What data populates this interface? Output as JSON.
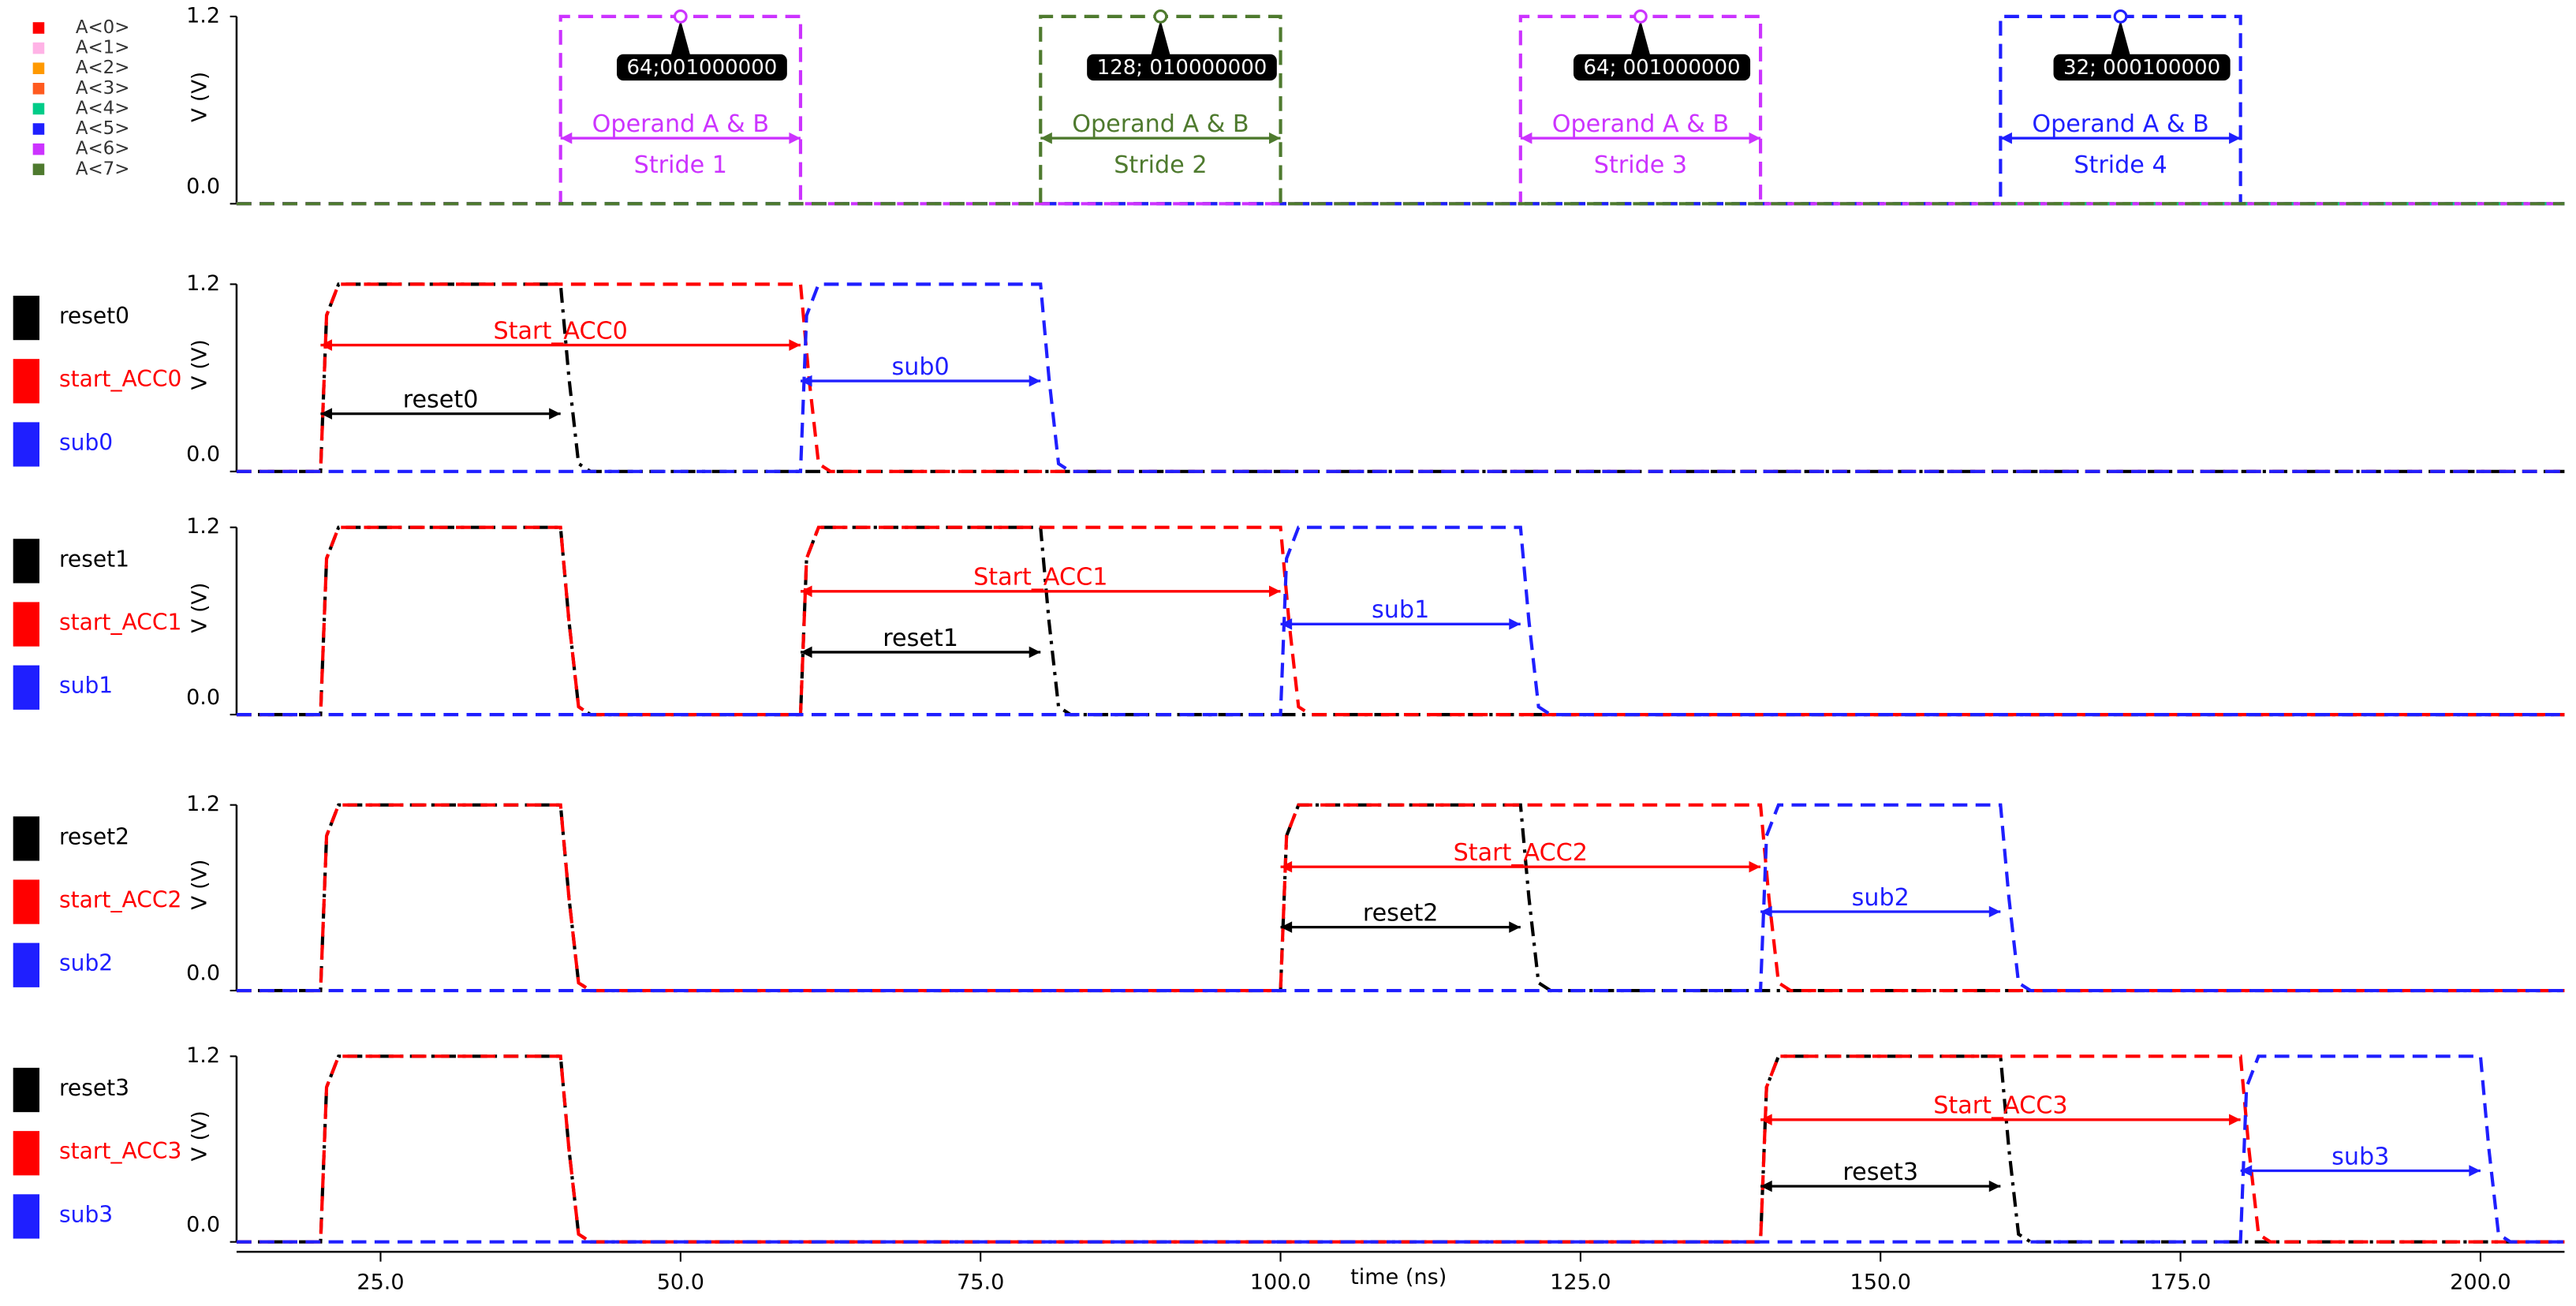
{
  "chart_data": [
    {
      "type": "line",
      "ylabel": "V (V)",
      "legend": "list",
      "xlim": [
        13,
        207
      ],
      "ylim": [
        0,
        1.2
      ],
      "yticks": [
        {
          "value": 0,
          "label": "0.0"
        },
        {
          "value": 1.2,
          "label": "1.2"
        }
      ],
      "series": [
        {
          "name": "A<0>",
          "color": "#ff0000",
          "dash": "dashed",
          "x": [
            13,
            207
          ],
          "values": [
            0,
            0
          ]
        },
        {
          "name": "A<1>",
          "color": "#ffb3e6",
          "dash": "dashed",
          "x": [
            13,
            207
          ],
          "values": [
            0,
            0
          ]
        },
        {
          "name": "A<2>",
          "color": "#ff9900",
          "dash": "dashed",
          "x": [
            13,
            207
          ],
          "values": [
            0,
            0
          ]
        },
        {
          "name": "A<3>",
          "color": "#ff5a1f",
          "dash": "dashed",
          "x": [
            13,
            207
          ],
          "values": [
            0,
            0
          ]
        },
        {
          "name": "A<4>",
          "color": "#00cc88",
          "dash": "dashed",
          "x": [
            13,
            207
          ],
          "values": [
            0,
            0
          ]
        },
        {
          "name": "A<5>",
          "color": "#1f1fff",
          "dash": "dashed",
          "x": [
            13,
            160,
            160,
            180,
            180,
            207
          ],
          "values": [
            0,
            0,
            1.2,
            1.2,
            0,
            0
          ]
        },
        {
          "name": "A<6>",
          "color": "#cc33ff",
          "dash": "dashed",
          "x": [
            13,
            40,
            40,
            60,
            60,
            120,
            120,
            140,
            140,
            207
          ],
          "values": [
            0,
            0,
            1.2,
            1.2,
            0,
            0,
            1.2,
            1.2,
            0,
            0
          ]
        },
        {
          "name": "A<7>",
          "color": "#4e7a2e",
          "dash": "dashed",
          "x": [
            13,
            80,
            80,
            100,
            100,
            207
          ],
          "values": [
            0,
            0,
            1.2,
            1.2,
            0,
            0
          ]
        }
      ],
      "annotations": [
        {
          "label": "Operand A & B",
          "sublabel": "Stride 1",
          "x": [
            40,
            60
          ],
          "y": 0.42,
          "color": "#cc33ff"
        },
        {
          "label": "Operand A & B",
          "sublabel": "Stride 2",
          "x": [
            80,
            100
          ],
          "y": 0.42,
          "color": "#4e7a2e"
        },
        {
          "label": "Operand A & B",
          "sublabel": "Stride 3",
          "x": [
            120,
            140
          ],
          "y": 0.42,
          "color": "#cc33ff"
        },
        {
          "label": "Operand A & B",
          "sublabel": "Stride 4",
          "x": [
            160,
            180
          ],
          "y": 0.42,
          "color": "#1f1fff"
        }
      ],
      "callouts": [
        {
          "text": "64;001000000",
          "x": 50,
          "y": 1.2,
          "color": "#cc33ff"
        },
        {
          "text": "128; 010000000",
          "x": 90,
          "y": 1.2,
          "color": "#4e7a2e"
        },
        {
          "text": "64; 001000000",
          "x": 130,
          "y": 1.2,
          "color": "#cc33ff"
        },
        {
          "text": "32; 000100000",
          "x": 170,
          "y": 1.2,
          "color": "#1f1fff"
        }
      ]
    },
    {
      "type": "line",
      "ylabel": "V (V)",
      "legend": "swatch",
      "xlim": [
        13,
        207
      ],
      "ylim": [
        0,
        1.2
      ],
      "yticks": [
        {
          "value": 0,
          "label": "0.0"
        },
        {
          "value": 1.2,
          "label": "1.2"
        }
      ],
      "series": [
        {
          "name": "reset0",
          "color": "#000000",
          "dash": "dashdot",
          "x": [
            13,
            20,
            20.5,
            21.5,
            40,
            40.7,
            41.5,
            42.5,
            207
          ],
          "values": [
            0,
            0,
            1,
            1.2,
            1.2,
            0.6,
            0.05,
            0,
            0
          ]
        },
        {
          "name": "start_ACC0",
          "color": "#ff0000",
          "dash": "dashed",
          "x": [
            13,
            20,
            20.5,
            21.5,
            60,
            60.7,
            61.5,
            62.5,
            207
          ],
          "values": [
            0,
            0,
            1,
            1.2,
            1.2,
            0.6,
            0.05,
            0,
            0
          ]
        },
        {
          "name": "sub0",
          "color": "#1f1fff",
          "dash": "dashed",
          "x": [
            13,
            60,
            60.5,
            61.5,
            80,
            80.7,
            81.5,
            82.5,
            207
          ],
          "values": [
            0,
            0,
            1,
            1.2,
            1.2,
            0.6,
            0.05,
            0,
            0
          ]
        }
      ],
      "annotations": [
        {
          "label": "Start_ACC0",
          "x": [
            20,
            60
          ],
          "y": 0.81,
          "color": "#ff0000"
        },
        {
          "label": "reset0",
          "x": [
            20,
            40
          ],
          "y": 0.37,
          "color": "#000000"
        },
        {
          "label": "sub0",
          "x": [
            60,
            80
          ],
          "y": 0.58,
          "color": "#1f1fff"
        }
      ]
    },
    {
      "type": "line",
      "ylabel": "V (V)",
      "legend": "swatch",
      "xlim": [
        13,
        207
      ],
      "ylim": [
        0,
        1.2
      ],
      "yticks": [
        {
          "value": 0,
          "label": "0.0"
        },
        {
          "value": 1.2,
          "label": "1.2"
        }
      ],
      "series": [
        {
          "name": "reset1",
          "color": "#000000",
          "dash": "dashdot",
          "x": [
            13,
            20,
            20.5,
            21.5,
            40,
            40.7,
            41.5,
            42.5,
            60,
            60.5,
            61.5,
            80,
            80.7,
            81.5,
            82.5,
            207
          ],
          "values": [
            0,
            0,
            1,
            1.2,
            1.2,
            0.6,
            0.05,
            0,
            0,
            1,
            1.2,
            1.2,
            0.6,
            0.05,
            0,
            0
          ]
        },
        {
          "name": "start_ACC1",
          "color": "#ff0000",
          "dash": "dashed",
          "x": [
            13,
            20,
            20.5,
            21.5,
            40,
            40.7,
            41.5,
            42.5,
            60,
            60.5,
            61.5,
            100,
            100.7,
            101.5,
            102.5,
            207
          ],
          "values": [
            0,
            0,
            1,
            1.2,
            1.2,
            0.6,
            0.05,
            0,
            0,
            1,
            1.2,
            1.2,
            0.6,
            0.05,
            0,
            0
          ]
        },
        {
          "name": "sub1",
          "color": "#1f1fff",
          "dash": "dashed",
          "x": [
            13,
            100,
            100.5,
            101.5,
            120,
            120.7,
            121.5,
            122.5,
            207
          ],
          "values": [
            0,
            0,
            1,
            1.2,
            1.2,
            0.6,
            0.05,
            0,
            0
          ]
        }
      ],
      "annotations": [
        {
          "label": "Start_ACC1",
          "x": [
            60,
            100
          ],
          "y": 0.79,
          "color": "#ff0000"
        },
        {
          "label": "reset1",
          "x": [
            60,
            80
          ],
          "y": 0.4,
          "color": "#000000"
        },
        {
          "label": "sub1",
          "x": [
            100,
            120
          ],
          "y": 0.58,
          "color": "#1f1fff"
        }
      ]
    },
    {
      "type": "line",
      "ylabel": "V (V)",
      "legend": "swatch",
      "xlim": [
        13,
        207
      ],
      "ylim": [
        0,
        1.2
      ],
      "yticks": [
        {
          "value": 0,
          "label": "0.0"
        },
        {
          "value": 1.2,
          "label": "1.2"
        }
      ],
      "series": [
        {
          "name": "reset2",
          "color": "#000000",
          "dash": "dashdot",
          "x": [
            13,
            20,
            20.5,
            21.5,
            40,
            40.7,
            41.5,
            42.5,
            100,
            100.5,
            101.5,
            120,
            120.7,
            121.5,
            122.5,
            207
          ],
          "values": [
            0,
            0,
            1,
            1.2,
            1.2,
            0.6,
            0.05,
            0,
            0,
            1,
            1.2,
            1.2,
            0.6,
            0.05,
            0,
            0
          ]
        },
        {
          "name": "start_ACC2",
          "color": "#ff0000",
          "dash": "dashed",
          "x": [
            13,
            20,
            20.5,
            21.5,
            40,
            40.7,
            41.5,
            42.5,
            100,
            100.5,
            101.5,
            140,
            140.7,
            141.5,
            142.5,
            207
          ],
          "values": [
            0,
            0,
            1,
            1.2,
            1.2,
            0.6,
            0.05,
            0,
            0,
            1,
            1.2,
            1.2,
            0.6,
            0.05,
            0,
            0
          ]
        },
        {
          "name": "sub2",
          "color": "#1f1fff",
          "dash": "dashed",
          "x": [
            13,
            140,
            140.5,
            141.5,
            160,
            160.7,
            161.5,
            162.5,
            207
          ],
          "values": [
            0,
            0,
            1,
            1.2,
            1.2,
            0.6,
            0.05,
            0,
            0
          ]
        }
      ],
      "annotations": [
        {
          "label": "Start_ACC2",
          "x": [
            100,
            140
          ],
          "y": 0.8,
          "color": "#ff0000"
        },
        {
          "label": "reset2",
          "x": [
            100,
            120
          ],
          "y": 0.41,
          "color": "#000000"
        },
        {
          "label": "sub2",
          "x": [
            140,
            160
          ],
          "y": 0.51,
          "color": "#1f1fff"
        }
      ]
    },
    {
      "type": "line",
      "ylabel": "V (V)",
      "legend": "swatch",
      "xlabel": "time (ns)",
      "xlim": [
        13,
        207
      ],
      "ylim": [
        0,
        1.2
      ],
      "yticks": [
        {
          "value": 0,
          "label": "0.0"
        },
        {
          "value": 1.2,
          "label": "1.2"
        }
      ],
      "xticks": [
        {
          "value": 25,
          "label": "25.0"
        },
        {
          "value": 50,
          "label": "50.0"
        },
        {
          "value": 75,
          "label": "75.0"
        },
        {
          "value": 100,
          "label": "100.0"
        },
        {
          "value": 125,
          "label": "125.0"
        },
        {
          "value": 150,
          "label": "150.0"
        },
        {
          "value": 175,
          "label": "175.0"
        },
        {
          "value": 200,
          "label": "200.0"
        }
      ],
      "series": [
        {
          "name": "reset3",
          "color": "#000000",
          "dash": "dashdot",
          "x": [
            13,
            20,
            20.5,
            21.5,
            40,
            40.7,
            41.5,
            42.5,
            140,
            140.5,
            141.5,
            160,
            160.7,
            161.5,
            162.5,
            207
          ],
          "values": [
            0,
            0,
            1,
            1.2,
            1.2,
            0.6,
            0.05,
            0,
            0,
            1,
            1.2,
            1.2,
            0.6,
            0.05,
            0,
            0
          ]
        },
        {
          "name": "start_ACC3",
          "color": "#ff0000",
          "dash": "dashed",
          "x": [
            13,
            20,
            20.5,
            21.5,
            40,
            40.7,
            41.5,
            42.5,
            140,
            140.5,
            141.5,
            180,
            180.7,
            181.5,
            182.5,
            207
          ],
          "values": [
            0,
            0,
            1,
            1.2,
            1.2,
            0.6,
            0.05,
            0,
            0,
            1,
            1.2,
            1.2,
            0.6,
            0.05,
            0,
            0
          ]
        },
        {
          "name": "sub3",
          "color": "#1f1fff",
          "dash": "dashed",
          "x": [
            13,
            180,
            180.5,
            181.5,
            200,
            200.7,
            201.5,
            202.5,
            207
          ],
          "values": [
            0,
            0,
            1,
            1.2,
            1.2,
            0.6,
            0.05,
            0,
            0
          ]
        }
      ],
      "annotations": [
        {
          "label": "Start_ACC3",
          "x": [
            140,
            180
          ],
          "y": 0.79,
          "color": "#ff0000"
        },
        {
          "label": "reset3",
          "x": [
            140,
            160
          ],
          "y": 0.36,
          "color": "#000000"
        },
        {
          "label": "sub3",
          "x": [
            180,
            200
          ],
          "y": 0.46,
          "color": "#1f1fff"
        }
      ]
    }
  ]
}
